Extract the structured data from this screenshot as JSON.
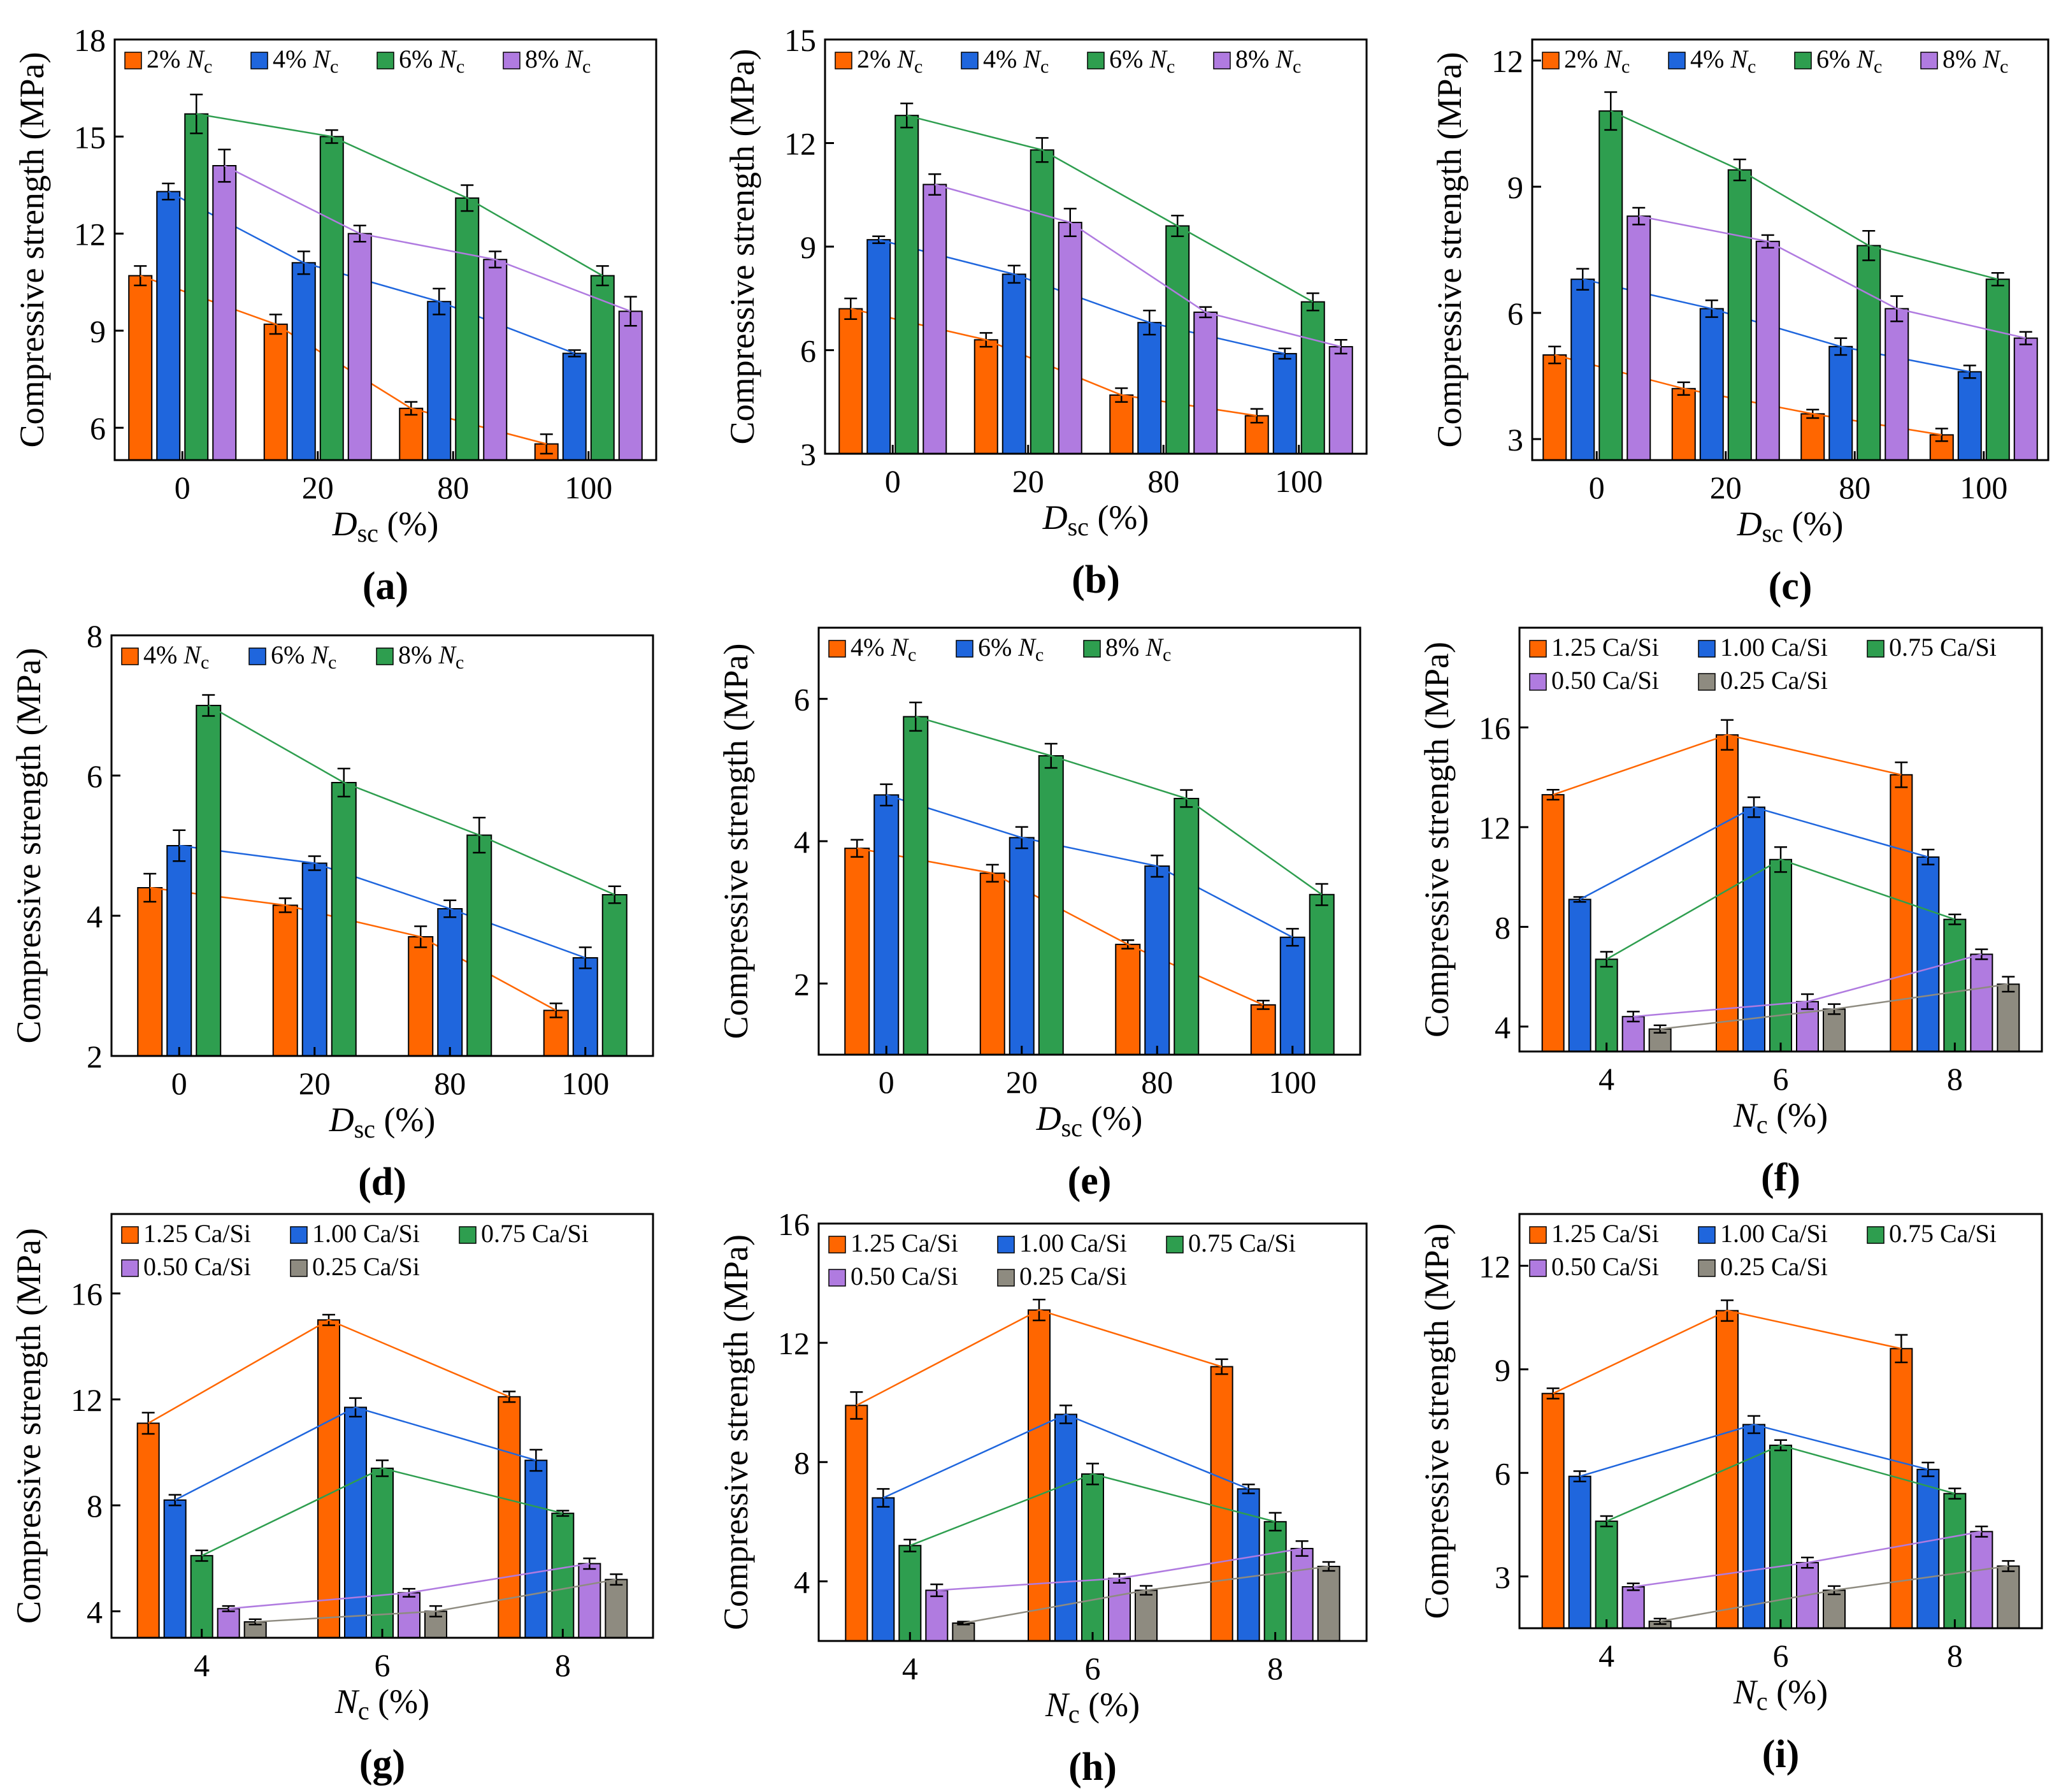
{
  "colors": {
    "orange": "#FF6600",
    "blue": "#1F66DD",
    "green": "#2E9E4F",
    "purple": "#B07BE0",
    "gray": "#8E8B80"
  },
  "chart_data": [
    {
      "id": "a",
      "panel_label": "(a)",
      "type": "bar",
      "ylabel": "Compressive strength (MPa)",
      "xlabel_var": "D",
      "xlabel_sub": "sc",
      "xlabel_unit": " (%)",
      "categories": [
        "0",
        "20",
        "80",
        "100"
      ],
      "ylim": [
        5,
        18
      ],
      "yticks": [
        6,
        9,
        12,
        15,
        18
      ],
      "legend_cols": 4,
      "series": [
        {
          "name": "2% Nc",
          "label_pre": "2% ",
          "label_var": "N",
          "label_sub": "c",
          "color": "#FF6600",
          "values": [
            10.7,
            9.2,
            6.6,
            5.5
          ],
          "errors": [
            0.3,
            0.3,
            0.2,
            0.3
          ]
        },
        {
          "name": "4% Nc",
          "label_pre": "4% ",
          "label_var": "N",
          "label_sub": "c",
          "color": "#1F66DD",
          "values": [
            13.3,
            11.1,
            9.9,
            8.3
          ],
          "errors": [
            0.25,
            0.35,
            0.4,
            0.1
          ]
        },
        {
          "name": "6% Nc",
          "label_pre": "6% ",
          "label_var": "N",
          "label_sub": "c",
          "color": "#2E9E4F",
          "values": [
            15.7,
            15.0,
            13.1,
            10.7
          ],
          "errors": [
            0.6,
            0.2,
            0.4,
            0.3
          ]
        },
        {
          "name": "8% Nc",
          "label_pre": "8% ",
          "label_var": "N",
          "label_sub": "c",
          "color": "#B07BE0",
          "values": [
            14.1,
            12.0,
            11.2,
            9.6
          ],
          "errors": [
            0.5,
            0.25,
            0.25,
            0.45
          ]
        }
      ]
    },
    {
      "id": "b",
      "panel_label": "(b)",
      "type": "bar",
      "ylabel": "Compressive strength (MPa)",
      "xlabel_var": "D",
      "xlabel_sub": "sc",
      "xlabel_unit": " (%)",
      "categories": [
        "0",
        "20",
        "80",
        "100"
      ],
      "ylim": [
        3,
        15
      ],
      "yticks": [
        3,
        6,
        9,
        12,
        15
      ],
      "legend_cols": 4,
      "series": [
        {
          "name": "2% Nc",
          "label_pre": "2% ",
          "label_var": "N",
          "label_sub": "c",
          "color": "#FF6600",
          "values": [
            7.2,
            6.3,
            4.7,
            4.1
          ],
          "errors": [
            0.3,
            0.2,
            0.2,
            0.2
          ]
        },
        {
          "name": "4% Nc",
          "label_pre": "4% ",
          "label_var": "N",
          "label_sub": "c",
          "color": "#1F66DD",
          "values": [
            9.2,
            8.2,
            6.8,
            5.9
          ],
          "errors": [
            0.1,
            0.25,
            0.35,
            0.15
          ]
        },
        {
          "name": "6% Nc",
          "label_pre": "6% ",
          "label_var": "N",
          "label_sub": "c",
          "color": "#2E9E4F",
          "values": [
            12.8,
            11.8,
            9.6,
            7.4
          ],
          "errors": [
            0.35,
            0.35,
            0.3,
            0.25
          ]
        },
        {
          "name": "8% Nc",
          "label_pre": "8% ",
          "label_var": "N",
          "label_sub": "c",
          "color": "#B07BE0",
          "values": [
            10.8,
            9.7,
            7.1,
            6.1
          ],
          "errors": [
            0.3,
            0.4,
            0.15,
            0.2
          ]
        }
      ]
    },
    {
      "id": "c",
      "panel_label": "(c)",
      "type": "bar",
      "ylabel": "Compressive strength (MPa)",
      "xlabel_var": "D",
      "xlabel_sub": "sc",
      "xlabel_unit": " (%)",
      "categories": [
        "0",
        "20",
        "80",
        "100"
      ],
      "ylim": [
        2.5,
        12.5
      ],
      "yticks": [
        3,
        6,
        9,
        12
      ],
      "legend_cols": 4,
      "series": [
        {
          "name": "2% Nc",
          "label_pre": "2% ",
          "label_var": "N",
          "label_sub": "c",
          "color": "#FF6600",
          "values": [
            5.0,
            4.2,
            3.6,
            3.1
          ],
          "errors": [
            0.2,
            0.15,
            0.1,
            0.15
          ]
        },
        {
          "name": "4% Nc",
          "label_pre": "4% ",
          "label_var": "N",
          "label_sub": "c",
          "color": "#1F66DD",
          "values": [
            6.8,
            6.1,
            5.2,
            4.6
          ],
          "errors": [
            0.25,
            0.2,
            0.2,
            0.15
          ]
        },
        {
          "name": "6% Nc",
          "label_pre": "6% ",
          "label_var": "N",
          "label_sub": "c",
          "color": "#2E9E4F",
          "values": [
            10.8,
            9.4,
            7.6,
            6.8
          ],
          "errors": [
            0.45,
            0.25,
            0.35,
            0.15
          ]
        },
        {
          "name": "8% Nc",
          "label_pre": "8% ",
          "label_var": "N",
          "label_sub": "c",
          "color": "#B07BE0",
          "values": [
            8.3,
            7.7,
            6.1,
            5.4
          ],
          "errors": [
            0.2,
            0.15,
            0.3,
            0.15
          ]
        }
      ]
    },
    {
      "id": "d",
      "panel_label": "(d)",
      "type": "bar",
      "ylabel": "Compressive strength (MPa)",
      "xlabel_var": "D",
      "xlabel_sub": "sc",
      "xlabel_unit": " (%)",
      "categories": [
        "0",
        "20",
        "80",
        "100"
      ],
      "ylim": [
        2,
        8
      ],
      "yticks": [
        2,
        4,
        6,
        8
      ],
      "legend_cols": 3,
      "series": [
        {
          "name": "4% Nc",
          "label_pre": "4% ",
          "label_var": "N",
          "label_sub": "c",
          "color": "#FF6600",
          "values": [
            4.4,
            4.15,
            3.7,
            2.65
          ],
          "errors": [
            0.2,
            0.1,
            0.15,
            0.1
          ]
        },
        {
          "name": "6% Nc",
          "label_pre": "6% ",
          "label_var": "N",
          "label_sub": "c",
          "color": "#1F66DD",
          "values": [
            5.0,
            4.75,
            4.1,
            3.4
          ],
          "errors": [
            0.22,
            0.1,
            0.12,
            0.15
          ]
        },
        {
          "name": "8% Nc",
          "label_pre": "8% ",
          "label_var": "N",
          "label_sub": "c",
          "color": "#2E9E4F",
          "values": [
            7.0,
            5.9,
            5.15,
            4.3
          ],
          "errors": [
            0.15,
            0.2,
            0.25,
            0.12
          ]
        }
      ]
    },
    {
      "id": "e",
      "panel_label": "(e)",
      "type": "bar",
      "ylabel": "Compressive strength (MPa)",
      "xlabel_var": "D",
      "xlabel_sub": "sc",
      "xlabel_unit": " (%)",
      "categories": [
        "0",
        "20",
        "80",
        "100"
      ],
      "ylim": [
        1,
        7
      ],
      "yticks": [
        2,
        4,
        6
      ],
      "legend_cols": 3,
      "series": [
        {
          "name": "4% Nc",
          "label_pre": "4% ",
          "label_var": "N",
          "label_sub": "c",
          "color": "#FF6600",
          "values": [
            3.9,
            3.55,
            2.55,
            1.7
          ],
          "errors": [
            0.12,
            0.12,
            0.06,
            0.06
          ]
        },
        {
          "name": "6% Nc",
          "label_pre": "6% ",
          "label_var": "N",
          "label_sub": "c",
          "color": "#1F66DD",
          "values": [
            4.65,
            4.05,
            3.65,
            2.65
          ],
          "errors": [
            0.15,
            0.15,
            0.15,
            0.12
          ]
        },
        {
          "name": "8% Nc",
          "label_pre": "8% ",
          "label_var": "N",
          "label_sub": "c",
          "color": "#2E9E4F",
          "values": [
            5.75,
            5.2,
            4.6,
            3.25
          ],
          "errors": [
            0.2,
            0.17,
            0.12,
            0.15
          ]
        }
      ]
    },
    {
      "id": "f",
      "panel_label": "(f)",
      "type": "bar",
      "ylabel": "Compressive strength (MPa)",
      "xlabel_var": "N",
      "xlabel_sub": "c",
      "xlabel_unit": " (%)",
      "categories": [
        "4",
        "6",
        "8"
      ],
      "ylim": [
        3,
        20
      ],
      "yticks": [
        4,
        8,
        12,
        16
      ],
      "legend_cols": 3,
      "series": [
        {
          "name": "1.25 Ca/Si",
          "label_pre": "1.25 Ca/Si",
          "color": "#FF6600",
          "values": [
            13.3,
            15.7,
            14.1
          ],
          "errors": [
            0.2,
            0.6,
            0.5
          ]
        },
        {
          "name": "1.00 Ca/Si",
          "label_pre": "1.00 Ca/Si",
          "color": "#1F66DD",
          "values": [
            9.1,
            12.8,
            10.8
          ],
          "errors": [
            0.1,
            0.4,
            0.3
          ]
        },
        {
          "name": "0.75 Ca/Si",
          "label_pre": "0.75 Ca/Si",
          "color": "#2E9E4F",
          "values": [
            6.7,
            10.7,
            8.3
          ],
          "errors": [
            0.3,
            0.5,
            0.2
          ]
        },
        {
          "name": "0.50 Ca/Si",
          "label_pre": "0.50 Ca/Si",
          "color": "#B07BE0",
          "values": [
            4.4,
            5.0,
            6.9
          ],
          "errors": [
            0.2,
            0.3,
            0.2
          ]
        },
        {
          "name": "0.25 Ca/Si",
          "label_pre": "0.25 Ca/Si",
          "color": "#8E8B80",
          "values": [
            3.9,
            4.7,
            5.7
          ],
          "errors": [
            0.15,
            0.2,
            0.3
          ]
        }
      ]
    },
    {
      "id": "g",
      "panel_label": "(g)",
      "type": "bar",
      "ylabel": "Compressive strength (MPa)",
      "xlabel_var": "N",
      "xlabel_sub": "c",
      "xlabel_unit": " (%)",
      "categories": [
        "4",
        "6",
        "8"
      ],
      "ylim": [
        3,
        19
      ],
      "yticks": [
        4,
        8,
        12,
        16
      ],
      "legend_cols": 3,
      "series": [
        {
          "name": "1.25 Ca/Si",
          "label_pre": "1.25 Ca/Si",
          "color": "#FF6600",
          "values": [
            11.1,
            15.0,
            12.1
          ],
          "errors": [
            0.4,
            0.2,
            0.2
          ]
        },
        {
          "name": "1.00 Ca/Si",
          "label_pre": "1.00 Ca/Si",
          "color": "#1F66DD",
          "values": [
            8.2,
            11.7,
            9.7
          ],
          "errors": [
            0.2,
            0.35,
            0.4
          ]
        },
        {
          "name": "0.75 Ca/Si",
          "label_pre": "0.75 Ca/Si",
          "color": "#2E9E4F",
          "values": [
            6.1,
            9.4,
            7.7
          ],
          "errors": [
            0.2,
            0.3,
            0.1
          ]
        },
        {
          "name": "0.50 Ca/Si",
          "label_pre": "0.50 Ca/Si",
          "color": "#B07BE0",
          "values": [
            4.1,
            4.7,
            5.8
          ],
          "errors": [
            0.1,
            0.15,
            0.2
          ]
        },
        {
          "name": "0.25 Ca/Si",
          "label_pre": "0.25 Ca/Si",
          "color": "#8E8B80",
          "values": [
            3.6,
            4.0,
            5.2
          ],
          "errors": [
            0.1,
            0.2,
            0.2
          ]
        }
      ]
    },
    {
      "id": "h",
      "panel_label": "(h)",
      "type": "bar",
      "ylabel": "Compressive strength (MPa)",
      "xlabel_var": "N",
      "xlabel_sub": "c",
      "xlabel_unit": " (%)",
      "categories": [
        "4",
        "6",
        "8"
      ],
      "ylim": [
        2,
        16
      ],
      "yticks": [
        4,
        8,
        12,
        16
      ],
      "legend_cols": 3,
      "series": [
        {
          "name": "1.25 Ca/Si",
          "label_pre": "1.25 Ca/Si",
          "color": "#FF6600",
          "values": [
            9.9,
            13.1,
            11.2
          ],
          "errors": [
            0.45,
            0.35,
            0.25
          ]
        },
        {
          "name": "1.00 Ca/Si",
          "label_pre": "1.00 Ca/Si",
          "color": "#1F66DD",
          "values": [
            6.8,
            9.6,
            7.1
          ],
          "errors": [
            0.3,
            0.3,
            0.15
          ]
        },
        {
          "name": "0.75 Ca/Si",
          "label_pre": "0.75 Ca/Si",
          "color": "#2E9E4F",
          "values": [
            5.2,
            7.6,
            6.0
          ],
          "errors": [
            0.2,
            0.35,
            0.3
          ]
        },
        {
          "name": "0.50 Ca/Si",
          "label_pre": "0.50 Ca/Si",
          "color": "#B07BE0",
          "values": [
            3.7,
            4.1,
            5.1
          ],
          "errors": [
            0.2,
            0.15,
            0.25
          ]
        },
        {
          "name": "0.25 Ca/Si",
          "label_pre": "0.25 Ca/Si",
          "color": "#8E8B80",
          "values": [
            2.6,
            3.7,
            4.5
          ],
          "errors": [
            0.05,
            0.15,
            0.15
          ]
        }
      ]
    },
    {
      "id": "i",
      "panel_label": "(i)",
      "type": "bar",
      "ylabel": "Compressive strength (MPa)",
      "xlabel_var": "N",
      "xlabel_sub": "c",
      "xlabel_unit": " (%)",
      "categories": [
        "4",
        "6",
        "8"
      ],
      "ylim": [
        1.5,
        13.5
      ],
      "yticks": [
        3,
        6,
        9,
        12
      ],
      "legend_cols": 3,
      "series": [
        {
          "name": "1.25 Ca/Si",
          "label_pre": "1.25 Ca/Si",
          "color": "#FF6600",
          "values": [
            8.3,
            10.7,
            9.6
          ],
          "errors": [
            0.15,
            0.3,
            0.4
          ]
        },
        {
          "name": "1.00 Ca/Si",
          "label_pre": "1.00 Ca/Si",
          "color": "#1F66DD",
          "values": [
            5.9,
            7.4,
            6.1
          ],
          "errors": [
            0.15,
            0.25,
            0.2
          ]
        },
        {
          "name": "0.75 Ca/Si",
          "label_pre": "0.75 Ca/Si",
          "color": "#2E9E4F",
          "values": [
            4.6,
            6.8,
            5.4
          ],
          "errors": [
            0.15,
            0.15,
            0.15
          ]
        },
        {
          "name": "0.50 Ca/Si",
          "label_pre": "0.50 Ca/Si",
          "color": "#B07BE0",
          "values": [
            2.7,
            3.4,
            4.3
          ],
          "errors": [
            0.1,
            0.15,
            0.15
          ]
        },
        {
          "name": "0.25 Ca/Si",
          "label_pre": "0.25 Ca/Si",
          "color": "#8E8B80",
          "values": [
            1.7,
            2.6,
            3.3
          ],
          "errors": [
            0.08,
            0.12,
            0.15
          ]
        }
      ]
    }
  ]
}
